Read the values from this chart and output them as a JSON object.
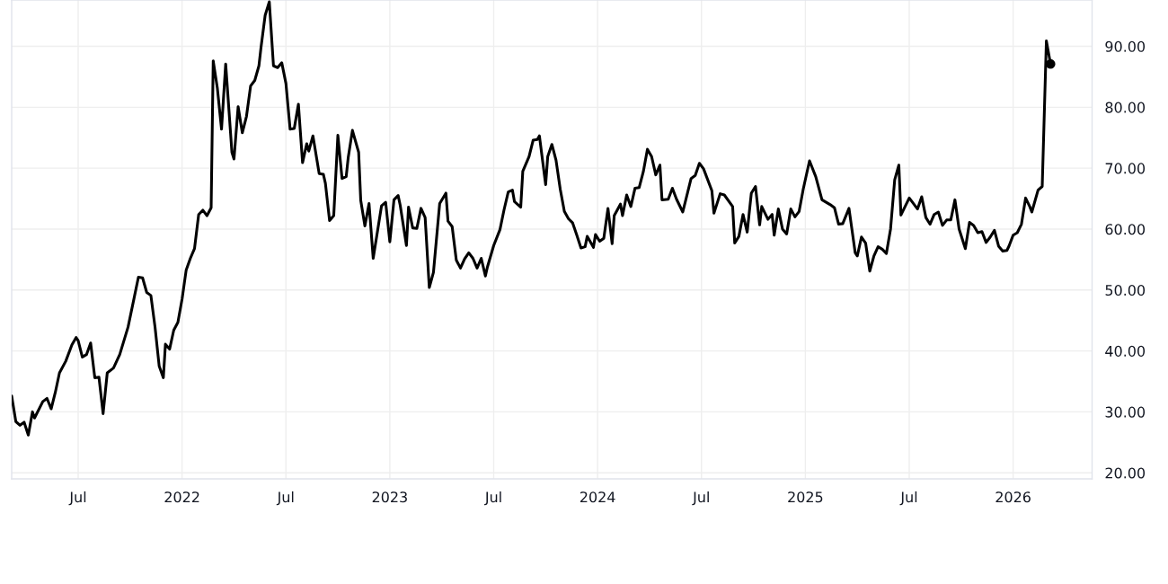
{
  "chart_data": {
    "type": "line",
    "xlim": [
      2021.18,
      2026.38
    ],
    "ylim": [
      19,
      97.6
    ],
    "xticks": [
      {
        "value": 2021.5,
        "label": "Jul"
      },
      {
        "value": 2022,
        "label": "2022"
      },
      {
        "value": 2022.5,
        "label": "Jul"
      },
      {
        "value": 2023,
        "label": "2023"
      },
      {
        "value": 2023.5,
        "label": "Jul"
      },
      {
        "value": 2024,
        "label": "2024"
      },
      {
        "value": 2024.5,
        "label": "Jul"
      },
      {
        "value": 2025,
        "label": "2025"
      },
      {
        "value": 2025.5,
        "label": "Jul"
      },
      {
        "value": 2026,
        "label": "2026"
      }
    ],
    "yticks": [
      {
        "value": 20,
        "label": "20.00"
      },
      {
        "value": 30,
        "label": "30.00"
      },
      {
        "value": 40,
        "label": "40.00"
      },
      {
        "value": 50,
        "label": "50.00"
      },
      {
        "value": 60,
        "label": "60.00"
      },
      {
        "value": 70,
        "label": "70.00"
      },
      {
        "value": 80,
        "label": "80.00"
      },
      {
        "value": 90,
        "label": "90.00"
      }
    ],
    "grid": true,
    "marker": "none",
    "line_style": "solid",
    "series": [
      {
        "color": "#000000",
        "x": [
          2021.18,
          2021.2,
          2021.22,
          2021.24,
          2021.26,
          2021.28,
          2021.29,
          2021.33,
          2021.35,
          2021.37,
          2021.39,
          2021.41,
          2021.44,
          2021.47,
          2021.49,
          2021.5,
          2021.52,
          2021.54,
          2021.56,
          2021.58,
          2021.6,
          2021.62,
          2021.64,
          2021.67,
          2021.7,
          2021.74,
          2021.77,
          2021.79,
          2021.81,
          2021.83,
          2021.85,
          2021.87,
          2021.89,
          2021.91,
          2021.92,
          2021.94,
          2021.96,
          2021.98,
          2022.0,
          2022.02,
          2022.04,
          2022.06,
          2022.08,
          2022.1,
          2022.12,
          2022.14,
          2022.15,
          2022.17,
          2022.19,
          2022.21,
          2022.24,
          2022.25,
          2022.27,
          2022.29,
          2022.31,
          2022.33,
          2022.35,
          2022.37,
          2022.38,
          2022.4,
          2022.42,
          2022.44,
          2022.46,
          2022.48,
          2022.5,
          2022.52,
          2022.54,
          2022.56,
          2022.58,
          2022.6,
          2022.61,
          2022.63,
          2022.66,
          2022.68,
          2022.69,
          2022.71,
          2022.73,
          2022.75,
          2022.77,
          2022.79,
          2022.8,
          2022.82,
          2022.85,
          2022.86,
          2022.88,
          2022.9,
          2022.92,
          2022.96,
          2022.98,
          2023.0,
          2023.02,
          2023.04,
          2023.05,
          2023.08,
          2023.09,
          2023.11,
          2023.13,
          2023.15,
          2023.17,
          2023.19,
          2023.21,
          2023.24,
          2023.27,
          2023.28,
          2023.3,
          2023.32,
          2023.34,
          2023.36,
          2023.38,
          2023.4,
          2023.42,
          2023.44,
          2023.46,
          2023.47,
          2023.5,
          2023.53,
          2023.55,
          2023.57,
          2023.59,
          2023.6,
          2023.63,
          2023.64,
          2023.67,
          2023.69,
          2023.71,
          2023.72,
          2023.75,
          2023.76,
          2023.78,
          2023.8,
          2023.82,
          2023.84,
          2023.86,
          2023.88,
          2023.9,
          2023.92,
          2023.94,
          2023.95,
          2023.98,
          2023.99,
          2024.01,
          2024.03,
          2024.05,
          2024.07,
          2024.08,
          2024.11,
          2024.12,
          2024.14,
          2024.16,
          2024.18,
          2024.2,
          2024.22,
          2024.24,
          2024.26,
          2024.28,
          2024.3,
          2024.31,
          2024.34,
          2024.36,
          2024.38,
          2024.39,
          2024.41,
          2024.45,
          2024.47,
          2024.49,
          2024.51,
          2024.55,
          2024.56,
          2024.59,
          2024.61,
          2024.65,
          2024.66,
          2024.68,
          2024.7,
          2024.72,
          2024.74,
          2024.76,
          2024.78,
          2024.79,
          2024.82,
          2024.84,
          2024.85,
          2024.87,
          2024.89,
          2024.91,
          2024.93,
          2024.95,
          2024.97,
          2024.99,
          2025.02,
          2025.05,
          2025.08,
          2025.12,
          2025.14,
          2025.16,
          2025.18,
          2025.21,
          2025.24,
          2025.25,
          2025.27,
          2025.29,
          2025.31,
          2025.33,
          2025.35,
          2025.37,
          2025.39,
          2025.41,
          2025.43,
          2025.45,
          2025.46,
          2025.5,
          2025.54,
          2025.56,
          2025.58,
          2025.6,
          2025.62,
          2025.64,
          2025.66,
          2025.68,
          2025.7,
          2025.72,
          2025.74,
          2025.77,
          2025.79,
          2025.81,
          2025.83,
          2025.85,
          2025.87,
          2025.89,
          2025.91,
          2025.93,
          2025.95,
          2025.97,
          2025.98,
          2026.0,
          2026.02,
          2026.04,
          2026.06,
          2026.08,
          2026.09,
          2026.12,
          2026.14,
          2026.16,
          2026.18
        ],
        "values": [
          32.6,
          28.4,
          27.8,
          28.3,
          26.2,
          30.0,
          29.0,
          31.7,
          32.2,
          30.5,
          33.2,
          36.4,
          38.3,
          41.0,
          42.2,
          41.7,
          39.0,
          39.4,
          41.3,
          35.6,
          35.7,
          29.7,
          36.4,
          37.2,
          39.4,
          43.9,
          48.8,
          52.1,
          52.0,
          49.6,
          49.1,
          43.9,
          37.5,
          35.6,
          41.1,
          40.3,
          43.4,
          44.7,
          48.5,
          53.3,
          55.2,
          56.8,
          62.4,
          63.1,
          62.2,
          63.5,
          87.6,
          83.1,
          76.4,
          87.1,
          72.6,
          71.5,
          80.1,
          75.8,
          78.5,
          83.5,
          84.4,
          86.8,
          89.8,
          95.1,
          97.3,
          86.8,
          86.5,
          87.3,
          83.9,
          76.4,
          76.5,
          80.5,
          70.9,
          74.0,
          72.8,
          75.3,
          69.1,
          69.0,
          67.5,
          61.4,
          62.2,
          75.4,
          68.3,
          68.6,
          71.8,
          76.2,
          72.6,
          64.7,
          60.5,
          64.2,
          55.2,
          63.8,
          64.4,
          57.9,
          64.8,
          65.5,
          63.9,
          57.3,
          63.6,
          60.2,
          60.1,
          63.4,
          61.9,
          50.4,
          52.9,
          64.2,
          65.9,
          61.3,
          60.4,
          54.9,
          53.6,
          55.1,
          56.1,
          55.2,
          53.6,
          55.2,
          52.3,
          53.8,
          57.3,
          59.9,
          63.2,
          66.1,
          66.4,
          64.5,
          63.6,
          69.5,
          71.9,
          74.6,
          74.7,
          75.3,
          67.3,
          71.9,
          73.9,
          71.3,
          66.6,
          62.9,
          61.7,
          61.0,
          59.0,
          56.9,
          57.1,
          58.8,
          57.0,
          59.1,
          58.0,
          58.5,
          63.4,
          57.6,
          62.2,
          64.1,
          62.2,
          65.6,
          63.7,
          66.7,
          66.8,
          69.4,
          73.1,
          71.9,
          68.9,
          70.5,
          64.8,
          64.9,
          66.7,
          64.9,
          64.2,
          62.8,
          68.3,
          68.8,
          70.8,
          69.9,
          66.3,
          62.6,
          65.8,
          65.6,
          63.7,
          57.7,
          58.8,
          62.4,
          59.5,
          65.9,
          67.0,
          60.7,
          63.7,
          61.6,
          62.4,
          59.0,
          63.3,
          60.0,
          59.2,
          63.3,
          62.0,
          62.9,
          66.6,
          71.2,
          68.6,
          64.8,
          64.0,
          63.5,
          60.8,
          60.9,
          63.4,
          56.1,
          55.6,
          58.7,
          57.7,
          53.1,
          55.6,
          57.1,
          56.7,
          56.0,
          60.0,
          68.1,
          70.5,
          62.3,
          65.1,
          63.3,
          65.3,
          61.9,
          60.8,
          62.4,
          62.8,
          60.6,
          61.5,
          61.5,
          64.8,
          60.0,
          56.8,
          61.1,
          60.6,
          59.4,
          59.6,
          57.8,
          58.7,
          59.8,
          57.2,
          56.4,
          56.5,
          57.2,
          59.0,
          59.4,
          60.8,
          65.1,
          63.7,
          62.8,
          66.4,
          67.0,
          90.9,
          87.1
        ]
      },
      {
        "type": "scatter",
        "marker": "circle",
        "color": "#000000",
        "x": [
          2026.18
        ],
        "values": [
          87.1
        ]
      }
    ]
  }
}
